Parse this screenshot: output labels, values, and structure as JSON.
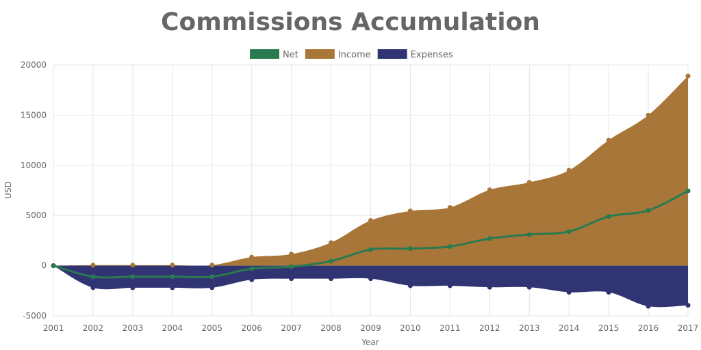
{
  "chart_data": {
    "type": "area",
    "title": "Commissions Accumulation",
    "xlabel": "Year",
    "ylabel": "USD",
    "x": [
      "2001",
      "2002",
      "2003",
      "2004",
      "2005",
      "2006",
      "2007",
      "2008",
      "2009",
      "2010",
      "2011",
      "2012",
      "2013",
      "2014",
      "2015",
      "2016",
      "2017"
    ],
    "ylim": [
      -5000,
      20000
    ],
    "yticks": [
      "-5000",
      "0",
      "5000",
      "10000",
      "15000",
      "20000"
    ],
    "grid": true,
    "legend_position": "top",
    "series": [
      {
        "name": "Net",
        "kind": "line",
        "color": "#2a7a50",
        "values": [
          0,
          -1100,
          -1100,
          -1100,
          -1100,
          -300,
          -100,
          450,
          1600,
          1700,
          1900,
          2700,
          3100,
          3400,
          4900,
          5500,
          7450
        ]
      },
      {
        "name": "Income",
        "kind": "area",
        "color": "#a87638",
        "values": [
          0,
          50,
          50,
          50,
          50,
          850,
          1150,
          2300,
          4500,
          5450,
          5800,
          7550,
          8300,
          9500,
          12500,
          15000,
          18900
        ]
      },
      {
        "name": "Expenses",
        "kind": "area",
        "color": "#303472",
        "values": [
          0,
          -2200,
          -2200,
          -2200,
          -2200,
          -1400,
          -1300,
          -1300,
          -1300,
          -2000,
          -2000,
          -2150,
          -2150,
          -2650,
          -2650,
          -4050,
          -3950
        ]
      }
    ]
  }
}
